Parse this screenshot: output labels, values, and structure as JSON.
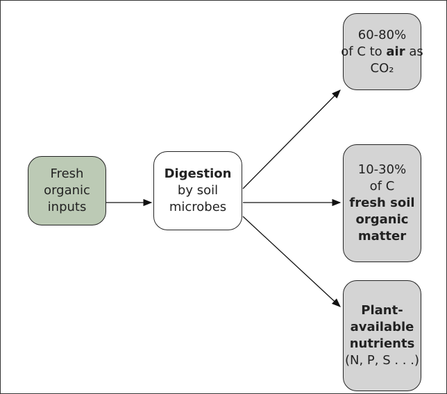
{
  "nodes": [
    {
      "lines": [
        [
          {
            "text": "Fresh",
            "bold": false
          }
        ],
        [
          {
            "text": "organic",
            "bold": false
          }
        ],
        [
          {
            "text": "inputs",
            "bold": false
          }
        ]
      ]
    },
    {
      "lines": [
        [
          {
            "text": "Digestion",
            "bold": true
          }
        ],
        [
          {
            "text": "by soil",
            "bold": false
          }
        ],
        [
          {
            "text": "microbes",
            "bold": false
          }
        ]
      ]
    },
    {
      "lines": [
        [
          {
            "text": "60-80%",
            "bold": false
          }
        ],
        [
          {
            "text": "of C to ",
            "bold": false
          },
          {
            "text": "air",
            "bold": true
          },
          {
            "text": " as",
            "bold": false
          }
        ],
        [
          {
            "text": "CO₂",
            "bold": false
          }
        ]
      ]
    },
    {
      "lines": [
        [
          {
            "text": "10-30%",
            "bold": false
          }
        ],
        [
          {
            "text": "of C",
            "bold": false
          }
        ],
        [
          {
            "text": "fresh soil",
            "bold": true
          }
        ],
        [
          {
            "text": "organic",
            "bold": true
          }
        ],
        [
          {
            "text": "matter",
            "bold": true
          }
        ]
      ]
    },
    {
      "lines": [
        [
          {
            "text": "Plant-",
            "bold": true
          }
        ],
        [
          {
            "text": "available",
            "bold": true
          }
        ],
        [
          {
            "text": "nutrients",
            "bold": true
          }
        ],
        [
          {
            "text": "(N, P, S . . .)",
            "bold": false
          }
        ]
      ]
    }
  ]
}
